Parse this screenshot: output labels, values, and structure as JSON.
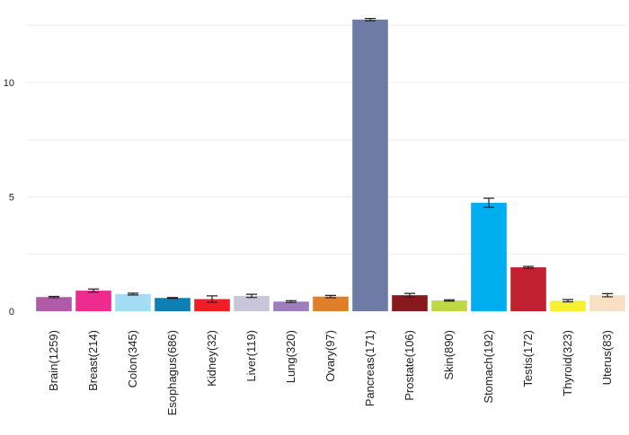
{
  "chart_data": {
    "type": "bar",
    "title": "",
    "xlabel": "",
    "ylabel": "",
    "ylim": [
      0,
      12.9
    ],
    "y_ticks": [
      0,
      5,
      10
    ],
    "grid": true,
    "categories": [
      "Brain(1259)",
      "Breast(214)",
      "Colon(345)",
      "Esophagus(686)",
      "Kidney(32)",
      "Liver(119)",
      "Lung(320)",
      "Ovary(97)",
      "Pancreas(171)",
      "Prostate(106)",
      "Skin(890)",
      "Stomach(192)",
      "Testis(172)",
      "Thyroid(323)",
      "Uterus(83)"
    ],
    "values": [
      0.62,
      0.9,
      0.75,
      0.58,
      0.53,
      0.67,
      0.42,
      0.64,
      12.75,
      0.7,
      0.47,
      4.74,
      1.92,
      0.46,
      0.7
    ],
    "error": [
      0.03,
      0.07,
      0.04,
      0.02,
      0.14,
      0.07,
      0.04,
      0.05,
      0.05,
      0.08,
      0.03,
      0.2,
      0.04,
      0.05,
      0.07
    ],
    "colors": [
      "#b05ba8",
      "#ee2b8f",
      "#a4dcf4",
      "#0e7fb2",
      "#ee1f27",
      "#c8c7da",
      "#9e7dbd",
      "#e07f2a",
      "#6d7ba5",
      "#871a1c",
      "#bfd846",
      "#00adee",
      "#c02030",
      "#f6ef34",
      "#f9e0c4"
    ]
  }
}
